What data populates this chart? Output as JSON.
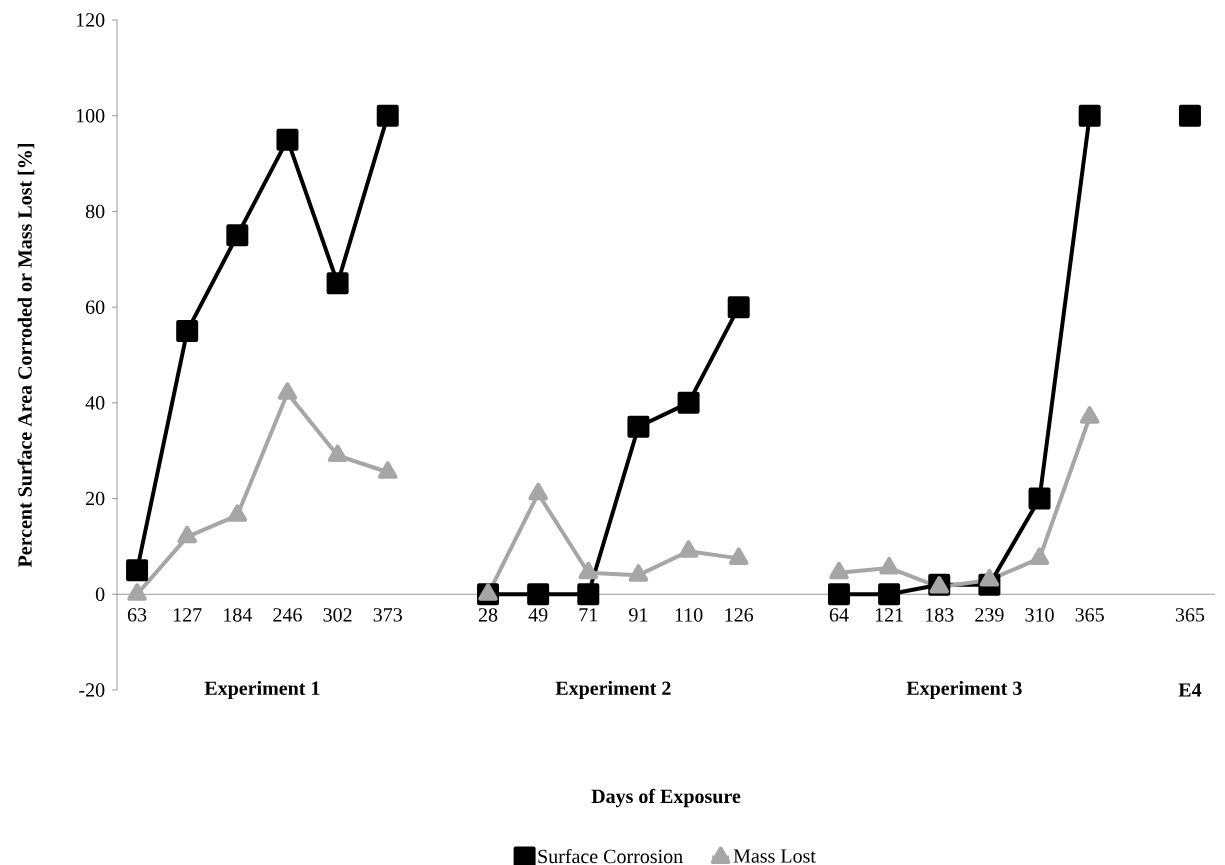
{
  "chart_data": {
    "type": "line",
    "xlabel": "Days of Exposure",
    "ylabel": "Percent Surface Area Corroded or Mass Lost [%]",
    "categories": [
      "63",
      "127",
      "184",
      "246",
      "302",
      "373",
      null,
      "28",
      "49",
      "71",
      "91",
      "110",
      "126",
      null,
      "64",
      "121",
      "183",
      "239",
      "310",
      "365",
      null,
      "365"
    ],
    "series": [
      {
        "name": "Surface Corrosion",
        "color": "#000000",
        "marker": "square",
        "values": [
          5,
          55,
          75,
          95,
          65,
          100,
          null,
          0,
          0,
          0,
          35,
          40,
          60,
          null,
          0,
          0,
          2,
          2,
          20,
          100,
          null,
          100
        ]
      },
      {
        "name": "Mass Lost",
        "color": "#a6a6a6",
        "marker": "triangle",
        "values": [
          0,
          12,
          16.5,
          42,
          29,
          25.5,
          null,
          0,
          21,
          4.5,
          4,
          9,
          7.5,
          null,
          4.5,
          5.5,
          1.5,
          3,
          7.5,
          37,
          null,
          null
        ]
      }
    ],
    "annotations": [
      "Experiment 1",
      "Experiment  2",
      "Experiment 3",
      "E4"
    ],
    "ylim": [
      -20,
      120
    ],
    "yticks": [
      -20,
      0,
      20,
      40,
      60,
      80,
      100,
      120
    ],
    "grid": false,
    "legend": "bottom",
    "line_style": "solid"
  }
}
